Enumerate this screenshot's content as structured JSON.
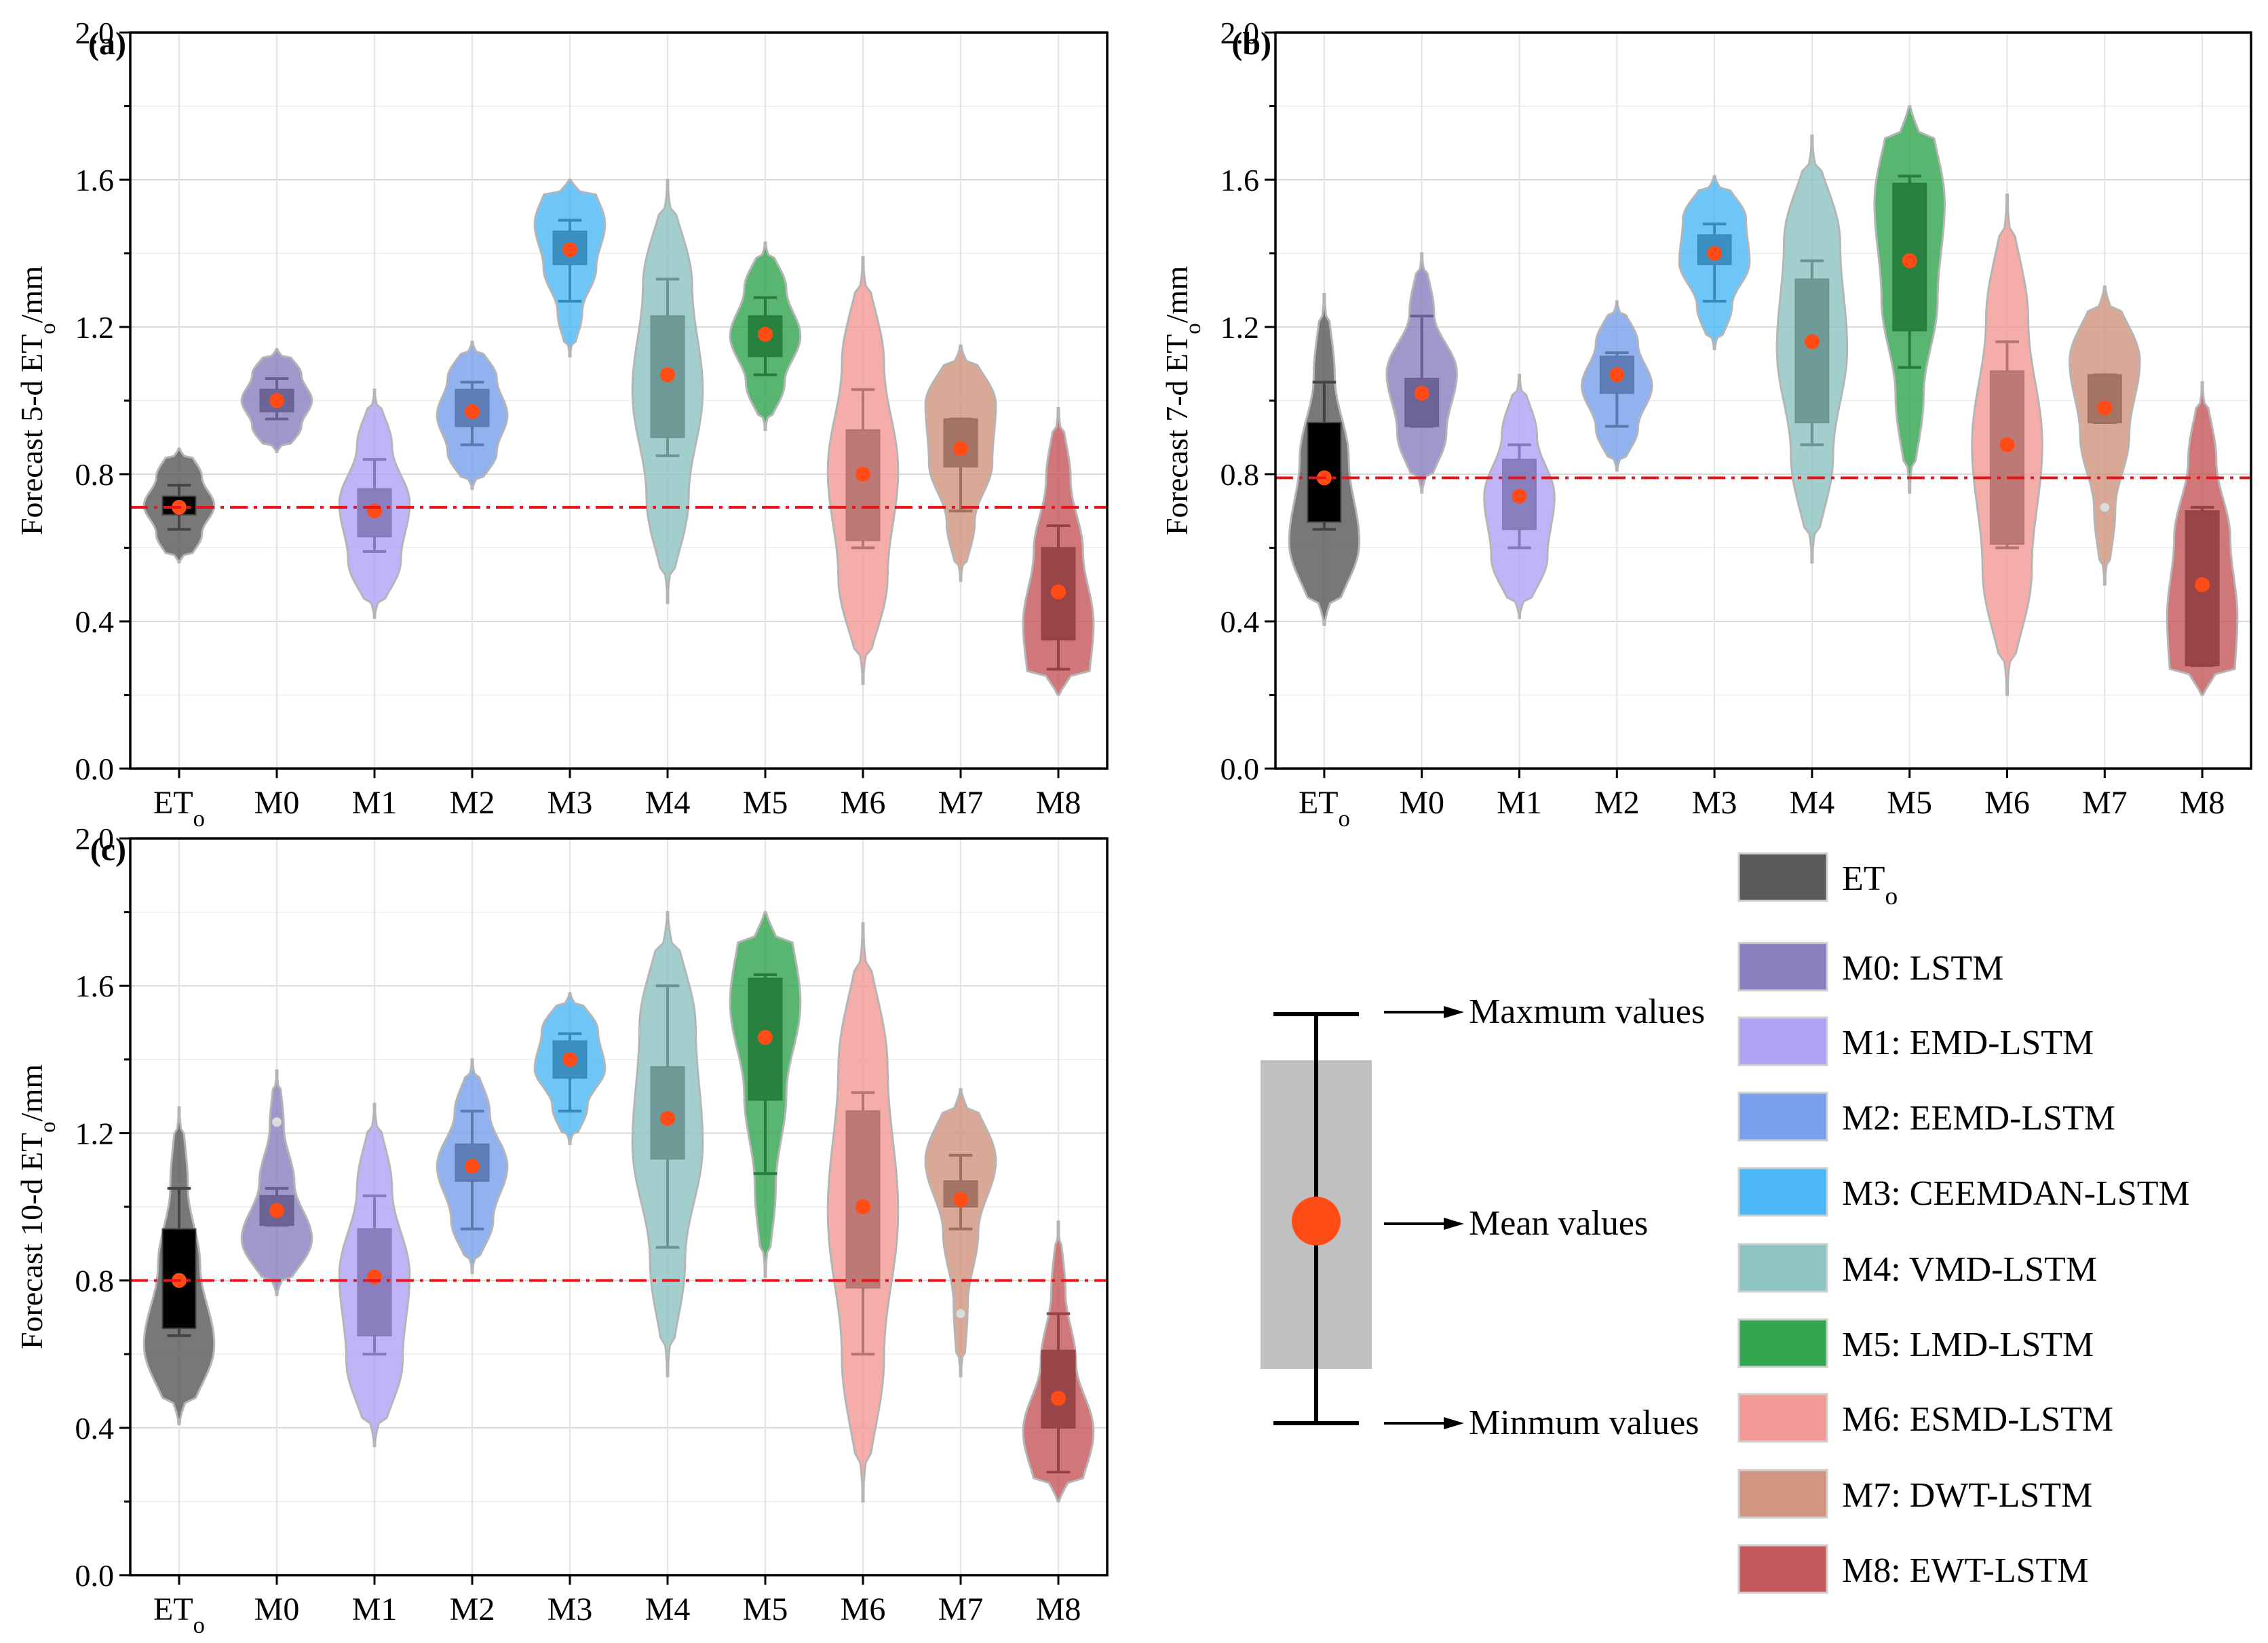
{
  "legend": {
    "items": [
      {
        "key": "ETo",
        "label": "ET",
        "sub": "o",
        "color": "#5a5a5a"
      },
      {
        "key": "M0",
        "label": "M0: LSTM",
        "color": "#8b80bf"
      },
      {
        "key": "M1",
        "label": "M1: EMD-LSTM",
        "color": "#b0a3f5"
      },
      {
        "key": "M2",
        "label": "M2: EEMD-LSTM",
        "color": "#7aa0eb"
      },
      {
        "key": "M3",
        "label": "M3: CEEMDAN-LSTM",
        "color": "#4db8f7"
      },
      {
        "key": "M4",
        "label": "M4: VMD-LSTM",
        "color": "#8ec5c3"
      },
      {
        "key": "M5",
        "label": "M5: LMD-LSTM",
        "color": "#33a650"
      },
      {
        "key": "M6",
        "label": "M6: ESMD-LSTM",
        "color": "#f29b96"
      },
      {
        "key": "M7",
        "label": "M7: DWT-LSTM",
        "color": "#d29580"
      },
      {
        "key": "M8",
        "label": "M8: EWT-LSTM",
        "color": "#c4595c"
      }
    ]
  },
  "explainer": {
    "max_label": "Maxmum values",
    "mean_label": "Mean values",
    "min_label": "Minmum values"
  },
  "chart_data": [
    {
      "type": "violin",
      "panel": "(a)",
      "ylabel_pre": "Forecast 5-d ET",
      "ylabel_sub": "o",
      "ylabel_post": "/mm",
      "ylim": [
        0.0,
        2.0
      ],
      "yticks": [
        "0.0",
        "0.4",
        "0.8",
        "1.2",
        "1.6",
        "2.0"
      ],
      "categories": [
        "ETo",
        "M0",
        "M1",
        "M2",
        "M3",
        "M4",
        "M5",
        "M6",
        "M7",
        "M8"
      ],
      "reference_line": 0.71,
      "series": [
        {
          "name": "ETo",
          "mean": 0.71,
          "q1": 0.69,
          "q3": 0.74,
          "whisker_low": 0.65,
          "whisker_high": 0.77,
          "vmin": 0.56,
          "vmax": 0.87,
          "shape": [
            0.3,
            0.65,
            1.0,
            0.65,
            0.3
          ]
        },
        {
          "name": "M0",
          "mean": 1.0,
          "q1": 0.97,
          "q3": 1.03,
          "whisker_low": 0.95,
          "whisker_high": 1.06,
          "vmin": 0.86,
          "vmax": 1.14,
          "shape": [
            0.3,
            0.7,
            1.0,
            0.7,
            0.3
          ]
        },
        {
          "name": "M1",
          "mean": 0.7,
          "q1": 0.63,
          "q3": 0.76,
          "whisker_low": 0.59,
          "whisker_high": 0.84,
          "vmin": 0.41,
          "vmax": 1.03,
          "shape": [
            0.15,
            0.75,
            1.0,
            0.5,
            0.1
          ]
        },
        {
          "name": "M2",
          "mean": 0.97,
          "q1": 0.93,
          "q3": 1.03,
          "whisker_low": 0.88,
          "whisker_high": 1.05,
          "vmin": 0.76,
          "vmax": 1.16,
          "shape": [
            0.2,
            0.7,
            1.0,
            0.7,
            0.2
          ]
        },
        {
          "name": "M3",
          "mean": 1.41,
          "q1": 1.37,
          "q3": 1.46,
          "whisker_low": 1.27,
          "whisker_high": 1.49,
          "vmin": 1.12,
          "vmax": 1.6,
          "shape": [
            0.1,
            0.35,
            0.75,
            1.0,
            0.65
          ]
        },
        {
          "name": "M4",
          "mean": 1.07,
          "q1": 0.9,
          "q3": 1.23,
          "whisker_low": 0.85,
          "whisker_high": 1.33,
          "vmin": 0.45,
          "vmax": 1.6,
          "shape": [
            0.08,
            0.6,
            1.0,
            0.7,
            0.1
          ]
        },
        {
          "name": "M5",
          "mean": 1.18,
          "q1": 1.12,
          "q3": 1.23,
          "whisker_low": 1.07,
          "whisker_high": 1.28,
          "vmin": 0.92,
          "vmax": 1.43,
          "shape": [
            0.1,
            0.55,
            1.0,
            0.6,
            0.15
          ]
        },
        {
          "name": "M6",
          "mean": 0.8,
          "q1": 0.62,
          "q3": 0.92,
          "whisker_low": 0.6,
          "whisker_high": 1.03,
          "vmin": 0.23,
          "vmax": 1.39,
          "shape": [
            0.1,
            0.7,
            1.0,
            0.6,
            0.1
          ]
        },
        {
          "name": "M7",
          "mean": 0.87,
          "q1": 0.82,
          "q3": 0.95,
          "whisker_low": 0.7,
          "whisker_high": 0.95,
          "vmin": 0.51,
          "vmax": 1.15,
          "shape": [
            0.1,
            0.4,
            0.9,
            1.0,
            0.3
          ]
        },
        {
          "name": "M8",
          "mean": 0.48,
          "q1": 0.35,
          "q3": 0.6,
          "whisker_low": 0.27,
          "whisker_high": 0.66,
          "vmin": 0.2,
          "vmax": 0.98,
          "shape": [
            0.85,
            1.0,
            0.7,
            0.35,
            0.1
          ]
        }
      ]
    },
    {
      "type": "violin",
      "panel": "(b)",
      "ylabel_pre": "Forecast 7-d ET",
      "ylabel_sub": "o",
      "ylabel_post": "/mm",
      "ylim": [
        0.0,
        2.0
      ],
      "yticks": [
        "0.0",
        "0.4",
        "0.8",
        "1.2",
        "1.6",
        "2.0"
      ],
      "categories": [
        "ETo",
        "M0",
        "M1",
        "M2",
        "M3",
        "M4",
        "M5",
        "M6",
        "M7",
        "M8"
      ],
      "reference_line": 0.79,
      "series": [
        {
          "name": "ETo",
          "mean": 0.79,
          "q1": 0.67,
          "q3": 0.94,
          "whisker_low": 0.65,
          "whisker_high": 1.05,
          "vmin": 0.39,
          "vmax": 1.29,
          "shape": [
            0.3,
            1.0,
            0.7,
            0.3,
            0.1
          ]
        },
        {
          "name": "M0",
          "mean": 1.02,
          "q1": 0.93,
          "q3": 1.06,
          "whisker_low": 0.93,
          "whisker_high": 1.23,
          "vmin": 0.75,
          "vmax": 1.4,
          "shape": [
            0.2,
            0.7,
            1.0,
            0.35,
            0.1
          ]
        },
        {
          "name": "M1",
          "mean": 0.74,
          "q1": 0.65,
          "q3": 0.84,
          "whisker_low": 0.6,
          "whisker_high": 0.88,
          "vmin": 0.41,
          "vmax": 1.07,
          "shape": [
            0.2,
            0.8,
            1.0,
            0.5,
            0.1
          ]
        },
        {
          "name": "M2",
          "mean": 1.07,
          "q1": 1.02,
          "q3": 1.12,
          "whisker_low": 0.93,
          "whisker_high": 1.13,
          "vmin": 0.81,
          "vmax": 1.27,
          "shape": [
            0.15,
            0.6,
            1.0,
            0.6,
            0.15
          ]
        },
        {
          "name": "M3",
          "mean": 1.4,
          "q1": 1.37,
          "q3": 1.45,
          "whisker_low": 1.27,
          "whisker_high": 1.48,
          "vmin": 1.14,
          "vmax": 1.61,
          "shape": [
            0.15,
            0.5,
            1.0,
            0.9,
            0.3
          ]
        },
        {
          "name": "M4",
          "mean": 1.16,
          "q1": 0.94,
          "q3": 1.33,
          "whisker_low": 0.88,
          "whisker_high": 1.38,
          "vmin": 0.56,
          "vmax": 1.72,
          "shape": [
            0.1,
            0.6,
            1.0,
            0.8,
            0.1
          ]
        },
        {
          "name": "M5",
          "mean": 1.38,
          "q1": 1.19,
          "q3": 1.59,
          "whisker_low": 1.09,
          "whisker_high": 1.61,
          "vmin": 0.75,
          "vmax": 1.8,
          "shape": [
            0.1,
            0.4,
            0.8,
            1.0,
            0.6
          ]
        },
        {
          "name": "M6",
          "mean": 0.88,
          "q1": 0.61,
          "q3": 1.08,
          "whisker_low": 0.6,
          "whisker_high": 1.16,
          "vmin": 0.2,
          "vmax": 1.56,
          "shape": [
            0.1,
            0.7,
            1.0,
            0.6,
            0.1
          ]
        },
        {
          "name": "M7",
          "mean": 0.98,
          "q1": 0.94,
          "q3": 1.07,
          "whisker_low": 0.94,
          "whisker_high": 1.07,
          "vmin": 0.5,
          "vmax": 1.31,
          "outlier": 0.71,
          "shape": [
            0.1,
            0.3,
            0.7,
            1.0,
            0.3
          ]
        },
        {
          "name": "M8",
          "mean": 0.5,
          "q1": 0.28,
          "q3": 0.7,
          "whisker_low": 0.28,
          "whisker_high": 0.71,
          "vmin": 0.2,
          "vmax": 1.05,
          "shape": [
            0.9,
            1.0,
            0.8,
            0.4,
            0.1
          ]
        }
      ]
    },
    {
      "type": "violin",
      "panel": "(c)",
      "ylabel_pre": "Forecast 10-d ET",
      "ylabel_sub": "o",
      "ylabel_post": "/mm",
      "ylim": [
        0.0,
        2.0
      ],
      "yticks": [
        "0.0",
        "0.4",
        "0.8",
        "1.2",
        "1.6",
        "2.0"
      ],
      "categories": [
        "ETo",
        "M0",
        "M1",
        "M2",
        "M3",
        "M4",
        "M5",
        "M6",
        "M7",
        "M8"
      ],
      "reference_line": 0.8,
      "series": [
        {
          "name": "ETo",
          "mean": 0.8,
          "q1": 0.67,
          "q3": 0.94,
          "whisker_low": 0.65,
          "whisker_high": 1.05,
          "vmin": 0.41,
          "vmax": 1.27,
          "shape": [
            0.3,
            1.0,
            0.6,
            0.25,
            0.1
          ]
        },
        {
          "name": "M0",
          "mean": 0.99,
          "q1": 0.95,
          "q3": 1.03,
          "whisker_low": 0.95,
          "whisker_high": 1.05,
          "vmin": 0.76,
          "vmax": 1.37,
          "outlier": 1.23,
          "shape": [
            0.25,
            1.0,
            0.5,
            0.2,
            0.08
          ]
        },
        {
          "name": "M1",
          "mean": 0.81,
          "q1": 0.65,
          "q3": 0.94,
          "whisker_low": 0.6,
          "whisker_high": 1.03,
          "vmin": 0.35,
          "vmax": 1.28,
          "shape": [
            0.2,
            0.8,
            1.0,
            0.5,
            0.1
          ]
        },
        {
          "name": "M2",
          "mean": 1.11,
          "q1": 1.07,
          "q3": 1.17,
          "whisker_low": 0.94,
          "whisker_high": 1.26,
          "vmin": 0.82,
          "vmax": 1.4,
          "shape": [
            0.1,
            0.6,
            1.0,
            0.5,
            0.1
          ]
        },
        {
          "name": "M3",
          "mean": 1.4,
          "q1": 1.35,
          "q3": 1.45,
          "whisker_low": 1.26,
          "whisker_high": 1.47,
          "vmin": 1.17,
          "vmax": 1.58,
          "shape": [
            0.15,
            0.5,
            1.0,
            0.8,
            0.25
          ]
        },
        {
          "name": "M4",
          "mean": 1.24,
          "q1": 1.13,
          "q3": 1.38,
          "whisker_low": 0.89,
          "whisker_high": 1.6,
          "vmin": 0.54,
          "vmax": 1.8,
          "shape": [
            0.1,
            0.5,
            1.0,
            0.8,
            0.2
          ]
        },
        {
          "name": "M5",
          "mean": 1.46,
          "q1": 1.29,
          "q3": 1.62,
          "whisker_low": 1.09,
          "whisker_high": 1.63,
          "vmin": 0.81,
          "vmax": 1.8,
          "shape": [
            0.1,
            0.3,
            0.6,
            1.0,
            0.7
          ]
        },
        {
          "name": "M6",
          "mean": 1.0,
          "q1": 0.78,
          "q3": 1.26,
          "whisker_low": 0.6,
          "whisker_high": 1.31,
          "vmin": 0.2,
          "vmax": 1.77,
          "shape": [
            0.1,
            0.6,
            1.0,
            0.7,
            0.1
          ]
        },
        {
          "name": "M7",
          "mean": 1.02,
          "q1": 1.0,
          "q3": 1.07,
          "whisker_low": 0.94,
          "whisker_high": 1.14,
          "vmin": 0.54,
          "vmax": 1.32,
          "outlier": 0.71,
          "shape": [
            0.1,
            0.2,
            0.5,
            1.0,
            0.35
          ]
        },
        {
          "name": "M8",
          "mean": 0.48,
          "q1": 0.4,
          "q3": 0.61,
          "whisker_low": 0.28,
          "whisker_high": 0.71,
          "vmin": 0.2,
          "vmax": 0.96,
          "shape": [
            0.6,
            1.0,
            0.5,
            0.2,
            0.05
          ]
        }
      ]
    }
  ]
}
